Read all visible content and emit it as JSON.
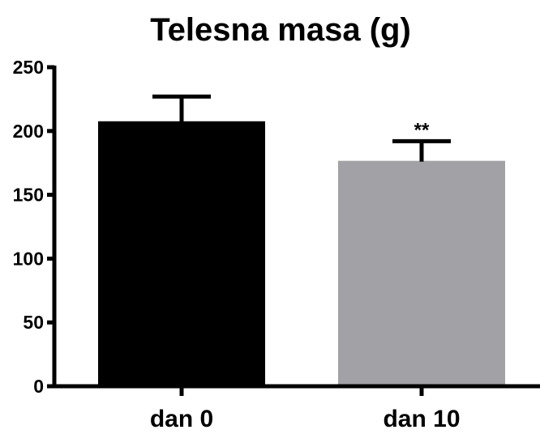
{
  "chart_data": {
    "type": "bar",
    "title": "Telesna masa (g)",
    "xlabel": "",
    "ylabel": "",
    "categories": [
      "dan 0",
      "dan 10"
    ],
    "values": [
      207,
      176
    ],
    "errors": [
      20,
      16
    ],
    "annotations": [
      "",
      "**"
    ],
    "colors": [
      "#000000",
      "#a2a1a6"
    ],
    "ylim": [
      0,
      250
    ],
    "yticks": [
      0,
      50,
      100,
      150,
      200,
      250
    ],
    "ytick_labels": [
      "0",
      "50",
      "100",
      "150",
      "200",
      "250"
    ],
    "grid": false,
    "legend": "none"
  }
}
